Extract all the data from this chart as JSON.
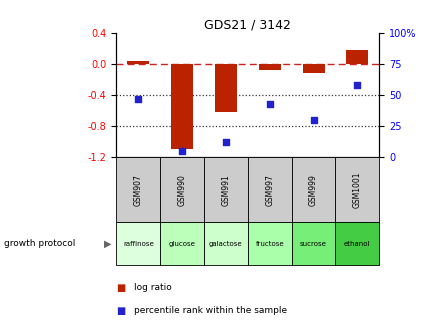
{
  "title": "GDS21 / 3142",
  "categories": [
    "GSM907",
    "GSM990",
    "GSM991",
    "GSM997",
    "GSM999",
    "GSM1001"
  ],
  "protocols": [
    "raffinose",
    "glucose",
    "galactose",
    "fructose",
    "sucrose",
    "ethanol"
  ],
  "log_ratio": [
    0.04,
    -1.1,
    -0.62,
    -0.08,
    -0.12,
    0.18
  ],
  "percentile_rank": [
    47,
    5,
    12,
    43,
    30,
    58
  ],
  "ylim_left": [
    -1.2,
    0.4
  ],
  "ylim_right": [
    0,
    100
  ],
  "yticks_left": [
    -1.2,
    -0.8,
    -0.4,
    0.0,
    0.4
  ],
  "yticks_right": [
    0,
    25,
    50,
    75,
    100
  ],
  "ytick_labels_right": [
    "0",
    "25",
    "50",
    "75",
    "100%"
  ],
  "bar_color": "#bb2200",
  "dot_color": "#2222cc",
  "dashed_line_color": "#cc2222",
  "dotted_line_color": "#333333",
  "protocol_colors": [
    "#ddffdd",
    "#bbffbb",
    "#ccffcc",
    "#aaffaa",
    "#77ee77",
    "#44cc44"
  ],
  "sample_bg_color": "#cccccc",
  "growth_protocol_label": "growth protocol",
  "legend_log_ratio": "log ratio",
  "legend_percentile": "percentile rank within the sample"
}
